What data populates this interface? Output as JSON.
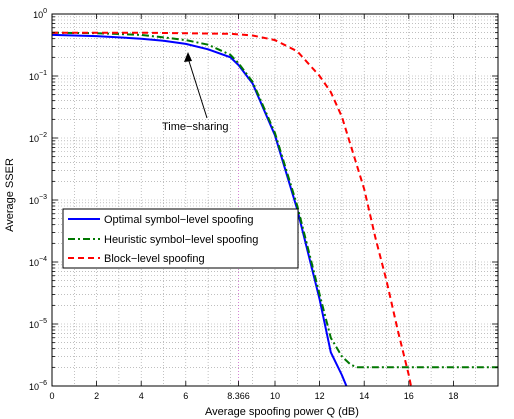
{
  "chart_data": {
    "type": "line",
    "xlabel": "Average spoofing power Q (dB)",
    "ylabel": "Average SSER",
    "xlim": [
      0,
      20
    ],
    "ylim": [
      1e-06,
      1
    ],
    "yscale": "log",
    "grid": true,
    "x_ticks": [
      0,
      2,
      4,
      6,
      8.366,
      10,
      12,
      14,
      16,
      18
    ],
    "x_tick_labels": [
      "0",
      "2",
      "4",
      "6",
      "8.366",
      "10",
      "12",
      "14",
      "16",
      "18"
    ],
    "y_tick_labels": [
      {
        "base": "10",
        "exp": "0"
      },
      {
        "base": "10",
        "exp": "−1"
      },
      {
        "base": "10",
        "exp": "−2"
      },
      {
        "base": "10",
        "exp": "−3"
      },
      {
        "base": "10",
        "exp": "−4"
      },
      {
        "base": "10",
        "exp": "−5"
      },
      {
        "base": "10",
        "exp": "−6"
      }
    ],
    "reference_line_x": 8.366,
    "legend_position": "center-left",
    "annotation": {
      "text": "Time−sharing",
      "points_to": [
        5,
        0.3
      ]
    },
    "series": [
      {
        "name": "Optimal symbol−level spoofing",
        "color": "#0000ff",
        "style": "solid",
        "x": [
          0,
          2,
          4,
          5,
          6,
          7,
          8,
          8.366,
          9,
          10,
          11,
          12,
          12.5,
          13,
          13.2
        ],
        "y": [
          0.46,
          0.44,
          0.4,
          0.37,
          0.33,
          0.27,
          0.2,
          0.15,
          0.075,
          0.011,
          0.0007,
          2.5e-05,
          3.5e-06,
          1.5e-06,
          1e-06
        ]
      },
      {
        "name": "Heuristic symbol−level spoofing",
        "color": "#007700",
        "style": "dashdot",
        "x": [
          0,
          2,
          4,
          5,
          6,
          7,
          8,
          8.366,
          9,
          10,
          11,
          12,
          12.5,
          13,
          13.4,
          13.7,
          14,
          16,
          18,
          20
        ],
        "y": [
          0.5,
          0.49,
          0.46,
          0.42,
          0.38,
          0.32,
          0.22,
          0.16,
          0.08,
          0.012,
          0.0008,
          3e-05,
          6e-06,
          3e-06,
          2.2e-06,
          2e-06,
          2e-06,
          2e-06,
          2e-06,
          2e-06
        ]
      },
      {
        "name": "Block−level spoofing",
        "color": "#ff0000",
        "style": "dashed",
        "x": [
          0,
          4,
          8,
          9,
          10,
          11,
          12,
          12.5,
          13,
          14,
          14.5,
          15,
          15.5,
          16,
          16.1
        ],
        "y": [
          0.5,
          0.5,
          0.48,
          0.45,
          0.38,
          0.25,
          0.1,
          0.055,
          0.022,
          0.0015,
          0.00025,
          5e-05,
          8e-06,
          1.5e-06,
          1e-06
        ]
      }
    ]
  }
}
